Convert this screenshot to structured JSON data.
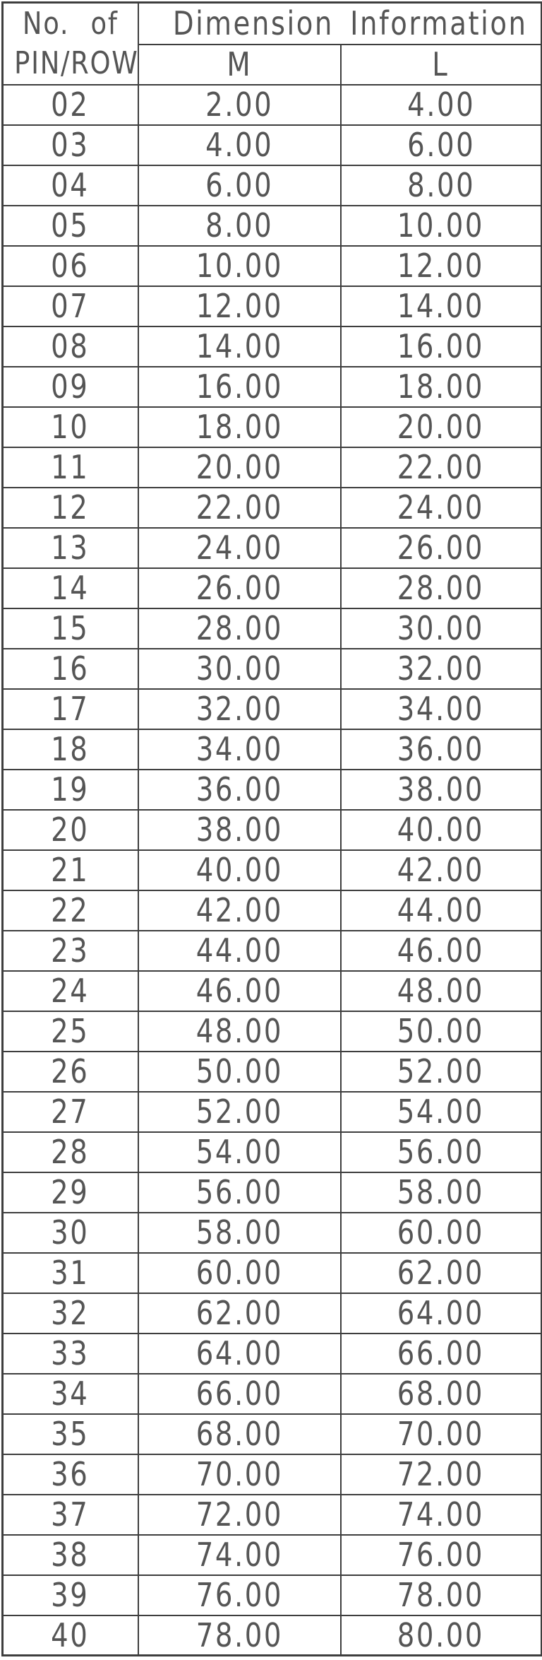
{
  "colors": {
    "line": "#3e3e3e",
    "text": "#555555",
    "background": "#ffffff"
  },
  "table": {
    "row_header": {
      "line1": "No. of",
      "line2": "PIN/ROW"
    },
    "group_header": "Dimension Information",
    "columns": [
      "M",
      "L"
    ],
    "rows": [
      {
        "pin": "02",
        "m": "2.00",
        "l": "4.00"
      },
      {
        "pin": "03",
        "m": "4.00",
        "l": "6.00"
      },
      {
        "pin": "04",
        "m": "6.00",
        "l": "8.00"
      },
      {
        "pin": "05",
        "m": "8.00",
        "l": "10.00"
      },
      {
        "pin": "06",
        "m": "10.00",
        "l": "12.00"
      },
      {
        "pin": "07",
        "m": "12.00",
        "l": "14.00"
      },
      {
        "pin": "08",
        "m": "14.00",
        "l": "16.00"
      },
      {
        "pin": "09",
        "m": "16.00",
        "l": "18.00"
      },
      {
        "pin": "10",
        "m": "18.00",
        "l": "20.00"
      },
      {
        "pin": "11",
        "m": "20.00",
        "l": "22.00"
      },
      {
        "pin": "12",
        "m": "22.00",
        "l": "24.00"
      },
      {
        "pin": "13",
        "m": "24.00",
        "l": "26.00"
      },
      {
        "pin": "14",
        "m": "26.00",
        "l": "28.00"
      },
      {
        "pin": "15",
        "m": "28.00",
        "l": "30.00"
      },
      {
        "pin": "16",
        "m": "30.00",
        "l": "32.00"
      },
      {
        "pin": "17",
        "m": "32.00",
        "l": "34.00"
      },
      {
        "pin": "18",
        "m": "34.00",
        "l": "36.00"
      },
      {
        "pin": "19",
        "m": "36.00",
        "l": "38.00"
      },
      {
        "pin": "20",
        "m": "38.00",
        "l": "40.00"
      },
      {
        "pin": "21",
        "m": "40.00",
        "l": "42.00"
      },
      {
        "pin": "22",
        "m": "42.00",
        "l": "44.00"
      },
      {
        "pin": "23",
        "m": "44.00",
        "l": "46.00"
      },
      {
        "pin": "24",
        "m": "46.00",
        "l": "48.00"
      },
      {
        "pin": "25",
        "m": "48.00",
        "l": "50.00"
      },
      {
        "pin": "26",
        "m": "50.00",
        "l": "52.00"
      },
      {
        "pin": "27",
        "m": "52.00",
        "l": "54.00"
      },
      {
        "pin": "28",
        "m": "54.00",
        "l": "56.00"
      },
      {
        "pin": "29",
        "m": "56.00",
        "l": "58.00"
      },
      {
        "pin": "30",
        "m": "58.00",
        "l": "60.00"
      },
      {
        "pin": "31",
        "m": "60.00",
        "l": "62.00"
      },
      {
        "pin": "32",
        "m": "62.00",
        "l": "64.00"
      },
      {
        "pin": "33",
        "m": "64.00",
        "l": "66.00"
      },
      {
        "pin": "34",
        "m": "66.00",
        "l": "68.00"
      },
      {
        "pin": "35",
        "m": "68.00",
        "l": "70.00"
      },
      {
        "pin": "36",
        "m": "70.00",
        "l": "72.00"
      },
      {
        "pin": "37",
        "m": "72.00",
        "l": "74.00"
      },
      {
        "pin": "38",
        "m": "74.00",
        "l": "76.00"
      },
      {
        "pin": "39",
        "m": "76.00",
        "l": "78.00"
      },
      {
        "pin": "40",
        "m": "78.00",
        "l": "80.00"
      }
    ]
  }
}
